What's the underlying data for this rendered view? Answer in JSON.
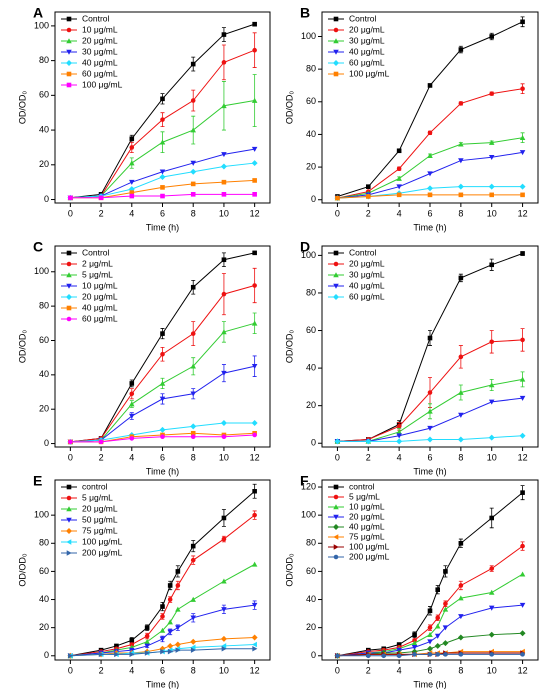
{
  "chart_data": [
    {
      "type": "line",
      "panel": "A",
      "xlabel": "Time (h)",
      "ylabel": "OD/OD₀",
      "legend": "upper left",
      "x": [
        0,
        2,
        4,
        6,
        8,
        10,
        12
      ],
      "xlim": [
        -1,
        13
      ],
      "xticks": [
        0,
        2,
        4,
        6,
        8,
        10,
        12
      ],
      "ylim": [
        -2,
        108
      ],
      "yticks": [
        0,
        20,
        40,
        60,
        80,
        100
      ],
      "series": [
        {
          "name": "Control",
          "color": "#000000",
          "marker": "square",
          "values": [
            1,
            3,
            35,
            58,
            78,
            95,
            101
          ],
          "errors": [
            0.5,
            0.5,
            2,
            3,
            4,
            4,
            1
          ]
        },
        {
          "name": "10  μg/mL",
          "color": "#ee1111",
          "marker": "circle",
          "values": [
            1,
            2,
            30,
            46,
            57,
            79,
            86
          ],
          "errors": [
            0.5,
            0.5,
            3,
            4,
            6,
            10,
            10
          ]
        },
        {
          "name": "20  μg/mL",
          "color": "#33cc33",
          "marker": "up",
          "values": [
            1,
            2,
            21,
            33,
            40,
            54,
            57
          ],
          "errors": [
            0.5,
            0.5,
            3,
            6,
            8,
            14,
            15
          ]
        },
        {
          "name": "30  μg/mL",
          "color": "#2222ee",
          "marker": "down",
          "values": [
            1,
            2,
            10,
            16,
            21,
            26,
            29
          ]
        },
        {
          "name": "40  μg/mL",
          "color": "#22ddff",
          "marker": "diamond",
          "values": [
            1,
            2,
            6,
            13,
            16,
            19,
            21
          ]
        },
        {
          "name": "60  μg/mL",
          "color": "#ff8000",
          "marker": "square",
          "values": [
            1,
            1,
            4,
            7,
            9,
            10,
            11
          ]
        },
        {
          "name": "100  μg/mL",
          "color": "#ff00ff",
          "marker": "square",
          "values": [
            1,
            1,
            2,
            2,
            3,
            3,
            3
          ]
        }
      ]
    },
    {
      "type": "line",
      "panel": "B",
      "xlabel": "Time (h)",
      "ylabel": "OD/OD₀",
      "legend": "upper left",
      "x": [
        0,
        2,
        4,
        6,
        8,
        10,
        12
      ],
      "xlim": [
        -1,
        13
      ],
      "xticks": [
        0,
        2,
        4,
        6,
        8,
        10,
        12
      ],
      "ylim": [
        -2,
        115
      ],
      "yticks": [
        0,
        20,
        40,
        60,
        80,
        100
      ],
      "series": [
        {
          "name": "Control",
          "color": "#000000",
          "marker": "square",
          "values": [
            2,
            8,
            30,
            70,
            92,
            100,
            109
          ],
          "errors": [
            0.5,
            1,
            1,
            1,
            2,
            2,
            3
          ]
        },
        {
          "name": "20  μg/mL",
          "color": "#ee1111",
          "marker": "circle",
          "values": [
            1,
            5,
            19,
            41,
            59,
            65,
            68
          ],
          "errors": [
            0.5,
            0.5,
            1,
            1,
            1,
            1,
            3
          ]
        },
        {
          "name": "30  μg/mL",
          "color": "#33cc33",
          "marker": "up",
          "values": [
            1,
            4,
            13,
            27,
            34,
            35,
            38
          ],
          "errors": [
            0.5,
            0.5,
            1,
            1,
            1,
            1,
            3
          ]
        },
        {
          "name": "40  μg/mL",
          "color": "#2222ee",
          "marker": "down",
          "values": [
            1,
            3,
            8,
            16,
            24,
            26,
            29
          ]
        },
        {
          "name": "60  μg/mL",
          "color": "#22ddff",
          "marker": "diamond",
          "values": [
            1,
            2,
            4,
            7,
            8,
            8,
            8
          ]
        },
        {
          "name": "100  μg/mL",
          "color": "#ff8000",
          "marker": "square",
          "values": [
            1,
            2,
            3,
            3,
            3,
            3,
            3
          ]
        }
      ]
    },
    {
      "type": "line",
      "panel": "C",
      "xlabel": "Time (h)",
      "ylabel": "OD/OD₀",
      "legend": "upper left",
      "x": [
        0,
        2,
        4,
        6,
        8,
        10,
        12
      ],
      "xlim": [
        -1,
        13
      ],
      "xticks": [
        0,
        2,
        4,
        6,
        8,
        10,
        12
      ],
      "ylim": [
        -2,
        115
      ],
      "yticks": [
        0,
        20,
        40,
        60,
        80,
        100
      ],
      "series": [
        {
          "name": "Control",
          "color": "#000000",
          "marker": "square",
          "values": [
            1,
            3,
            35,
            64,
            91,
            107,
            111
          ],
          "errors": [
            0.5,
            0.5,
            2,
            3,
            4,
            4,
            1
          ]
        },
        {
          "name": "2  μg/mL",
          "color": "#ee1111",
          "marker": "circle",
          "values": [
            1,
            3,
            29,
            52,
            64,
            87,
            92
          ],
          "errors": [
            0.5,
            0.5,
            3,
            4,
            7,
            12,
            10
          ]
        },
        {
          "name": "5  μg/mL",
          "color": "#33cc33",
          "marker": "up",
          "values": [
            1,
            2,
            23,
            35,
            45,
            65,
            70
          ],
          "errors": [
            0.5,
            0.5,
            2,
            3,
            5,
            6,
            6
          ]
        },
        {
          "name": "10  μg/mL",
          "color": "#2222ee",
          "marker": "down",
          "values": [
            1,
            2,
            16,
            26,
            29,
            41,
            45
          ],
          "errors": [
            0.5,
            0.5,
            2,
            3,
            3,
            5,
            6
          ]
        },
        {
          "name": "20  μg/mL",
          "color": "#22ddff",
          "marker": "diamond",
          "values": [
            1,
            2,
            5,
            8,
            10,
            12,
            12
          ]
        },
        {
          "name": "40  μg/mL",
          "color": "#ff8000",
          "marker": "square",
          "values": [
            1,
            1,
            4,
            5,
            6,
            5,
            6
          ]
        },
        {
          "name": "60  μg/mL",
          "color": "#ff00ff",
          "marker": "circle",
          "values": [
            1,
            1,
            3,
            4,
            4,
            4,
            5
          ]
        }
      ]
    },
    {
      "type": "line",
      "panel": "D",
      "xlabel": "Time (h)",
      "ylabel": "OD/OD₀",
      "legend": "upper left",
      "x": [
        0,
        2,
        4,
        6,
        8,
        10,
        12
      ],
      "xlim": [
        -1,
        13
      ],
      "xticks": [
        0,
        2,
        4,
        6,
        8,
        10,
        12
      ],
      "ylim": [
        -2,
        105
      ],
      "yticks": [
        0,
        20,
        40,
        60,
        80,
        100
      ],
      "series": [
        {
          "name": "Control",
          "color": "#000000",
          "marker": "square",
          "values": [
            1,
            2,
            10,
            56,
            88,
            95,
            101
          ],
          "errors": [
            0.5,
            0.5,
            2,
            4,
            2,
            3,
            1
          ]
        },
        {
          "name": "20  μg/mL",
          "color": "#ee1111",
          "marker": "circle",
          "values": [
            1,
            2,
            9,
            27,
            46,
            54,
            55
          ],
          "errors": [
            0.5,
            0.5,
            2,
            8,
            6,
            6,
            6
          ]
        },
        {
          "name": "30  μg/mL",
          "color": "#33cc33",
          "marker": "up",
          "values": [
            1,
            1,
            6,
            17,
            27,
            31,
            34
          ],
          "errors": [
            0.5,
            0.5,
            2,
            4,
            4,
            3,
            4
          ]
        },
        {
          "name": "40  μg/mL",
          "color": "#2222ee",
          "marker": "down",
          "values": [
            1,
            1,
            4,
            8,
            15,
            22,
            24
          ]
        },
        {
          "name": "60  μg/mL",
          "color": "#22ddff",
          "marker": "diamond",
          "values": [
            1,
            1,
            1,
            2,
            2,
            3,
            4
          ]
        }
      ]
    },
    {
      "type": "line",
      "panel": "E",
      "xlabel": "Time (h)",
      "ylabel": "OD/OD₀",
      "legend": "upper left",
      "x": [
        0,
        2,
        3,
        4,
        5,
        6,
        6.5,
        7,
        8,
        10,
        12
      ],
      "xlim": [
        -1,
        13
      ],
      "xticks": [
        0,
        2,
        4,
        6,
        8,
        10,
        12
      ],
      "ylim": [
        -3,
        125
      ],
      "yticks": [
        0,
        20,
        40,
        60,
        80,
        100
      ],
      "series": [
        {
          "name": "control",
          "color": "#000000",
          "marker": "square",
          "values": [
            0,
            4,
            7,
            11,
            20,
            35,
            50,
            60,
            78,
            98,
            117
          ],
          "errors": [
            0.5,
            1,
            1,
            2,
            2,
            3,
            3,
            4,
            4,
            6,
            5
          ]
        },
        {
          "name": "5 μg/mL",
          "color": "#ee1111",
          "marker": "circle",
          "values": [
            0,
            3,
            5,
            8,
            14,
            28,
            40,
            50,
            68,
            83,
            100
          ],
          "errors": [
            0.5,
            1,
            1,
            1,
            2,
            2,
            2,
            3,
            3,
            2,
            3
          ]
        },
        {
          "name": "20 μg/mL",
          "color": "#33cc33",
          "marker": "up",
          "values": [
            0,
            2,
            4,
            6,
            10,
            18,
            24,
            33,
            40,
            53,
            65
          ]
        },
        {
          "name": "50 μg/mL",
          "color": "#2222ee",
          "marker": "down",
          "values": [
            0,
            2,
            3,
            4,
            7,
            12,
            17,
            20,
            27,
            33,
            36
          ],
          "errors": [
            0.5,
            0.5,
            0.5,
            1,
            1,
            2,
            2,
            2,
            3,
            3,
            3
          ]
        },
        {
          "name": "75 μg/mL",
          "color": "#ff8000",
          "marker": "diamond",
          "values": [
            0,
            1,
            2,
            2,
            3,
            5,
            7,
            8,
            10,
            12,
            13
          ]
        },
        {
          "name": "100 μg/mL",
          "color": "#22ddff",
          "marker": "left",
          "values": [
            0,
            1,
            1,
            2,
            2,
            3,
            4,
            5,
            6,
            7,
            8
          ]
        },
        {
          "name": "200 μg/mL",
          "color": "#3366aa",
          "marker": "right",
          "values": [
            0,
            1,
            1,
            1,
            2,
            3,
            3,
            4,
            4,
            5,
            5
          ]
        }
      ]
    },
    {
      "type": "line",
      "panel": "F",
      "xlabel": "Time (h)",
      "ylabel": "OD/OD₀",
      "legend": "upper left",
      "x": [
        0,
        2,
        3,
        4,
        5,
        6,
        6.5,
        7,
        8,
        10,
        12
      ],
      "xlim": [
        -1,
        13
      ],
      "xticks": [
        0,
        2,
        4,
        6,
        8,
        10,
        12
      ],
      "ylim": [
        -3,
        125
      ],
      "yticks": [
        0,
        20,
        40,
        60,
        80,
        100,
        120
      ],
      "series": [
        {
          "name": "control",
          "color": "#000000",
          "marker": "square",
          "values": [
            0,
            4,
            5,
            8,
            15,
            32,
            47,
            60,
            80,
            98,
            116
          ],
          "errors": [
            0.5,
            1,
            1,
            1,
            2,
            3,
            3,
            4,
            3,
            7,
            5
          ]
        },
        {
          "name": "5 μg/mL",
          "color": "#ee1111",
          "marker": "circle",
          "values": [
            0,
            3,
            4,
            6,
            11,
            20,
            27,
            37,
            50,
            62,
            78
          ],
          "errors": [
            0.5,
            0.5,
            1,
            1,
            1,
            2,
            2,
            2,
            3,
            2,
            3
          ]
        },
        {
          "name": "10 μg/mL",
          "color": "#33cc33",
          "marker": "up",
          "values": [
            0,
            2,
            3,
            5,
            9,
            15,
            21,
            33,
            41,
            45,
            58
          ]
        },
        {
          "name": "20 μg/mL",
          "color": "#2222ee",
          "marker": "down",
          "values": [
            0,
            2,
            2,
            4,
            6,
            10,
            14,
            20,
            28,
            34,
            36
          ]
        },
        {
          "name": "40 μg/mL",
          "color": "#228822",
          "marker": "diamond",
          "values": [
            0,
            1,
            2,
            2,
            3,
            5,
            7,
            9,
            13,
            15,
            16
          ]
        },
        {
          "name": "75 μg/mL",
          "color": "#ff8000",
          "marker": "left",
          "values": [
            0,
            1,
            1,
            1,
            1,
            2,
            2,
            2,
            3,
            3,
            3
          ]
        },
        {
          "name": "100 μg/mL",
          "color": "#990000",
          "marker": "right",
          "values": [
            0,
            1,
            1,
            1,
            1,
            1,
            1,
            2,
            2,
            2,
            2
          ]
        },
        {
          "name": "200 μg/mL",
          "color": "#3366aa",
          "marker": "circle",
          "values": [
            0,
            0,
            0,
            0,
            1,
            1,
            1,
            1,
            1,
            1,
            1
          ]
        }
      ]
    }
  ]
}
